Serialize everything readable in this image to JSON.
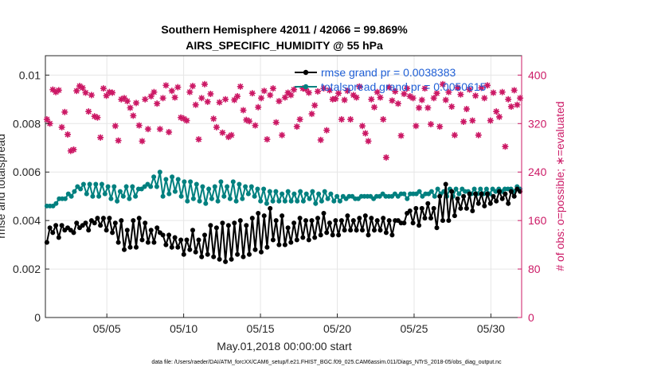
{
  "chart_data": {
    "type": "line",
    "title": [
      "Southern Hemisphere 42011 / 42066 = 99.869%",
      "AIRS_SPECIFIC_HUMIDITY @ 55 hPa"
    ],
    "xlabel": "May.01,2018 00:00:00 start",
    "ylabel_left": "rmse and totalspread",
    "ylabel_right": "# of obs: o=possible; ∗=evaluated",
    "x_ticks": [
      "05/05",
      "05/10",
      "05/15",
      "05/20",
      "05/25",
      "05/30"
    ],
    "x_tick_days": [
      5,
      10,
      15,
      20,
      25,
      30
    ],
    "xlim_days": [
      1,
      32
    ],
    "y_left_ticks": [
      "0",
      "0.002",
      "0.004",
      "0.006",
      "0.008",
      "0.01"
    ],
    "ylim_left": [
      0,
      0.0108
    ],
    "y_right_ticks": [
      "0",
      "80",
      "160",
      "240",
      "320",
      "400"
    ],
    "ylim_right": [
      0,
      432
    ],
    "grid": true,
    "legend_position": "top-right",
    "series": [
      {
        "name": "rmse grand pr = 0.0038383",
        "axis": "left",
        "color": "#000000",
        "marker": "circle",
        "values": [
          0.0031,
          0.0037,
          0.0035,
          0.0038,
          0.0033,
          0.0038,
          0.0036,
          0.0037,
          0.0036,
          0.0035,
          0.0039,
          0.0037,
          0.0038,
          0.0039,
          0.0036,
          0.004,
          0.0039,
          0.0041,
          0.0038,
          0.0041,
          0.0036,
          0.0041,
          0.0035,
          0.0039,
          0.0031,
          0.004,
          0.0028,
          0.0036,
          0.0029,
          0.004,
          0.0029,
          0.0041,
          0.0032,
          0.0039,
          0.0031,
          0.0036,
          0.0031,
          0.0037,
          0.0035,
          0.0034,
          0.003,
          0.0034,
          0.0029,
          0.0033,
          0.0029,
          0.0032,
          0.0026,
          0.0032,
          0.0028,
          0.0036,
          0.0027,
          0.0032,
          0.0025,
          0.0034,
          0.0026,
          0.0038,
          0.0025,
          0.0037,
          0.0024,
          0.0039,
          0.0023,
          0.0038,
          0.0024,
          0.0039,
          0.0026,
          0.004,
          0.0025,
          0.0038,
          0.0026,
          0.0041,
          0.0028,
          0.0043,
          0.0027,
          0.0042,
          0.0029,
          0.0045,
          0.0032,
          0.004,
          0.003,
          0.0042,
          0.003,
          0.0037,
          0.0031,
          0.0039,
          0.0032,
          0.0041,
          0.0033,
          0.004,
          0.0032,
          0.004,
          0.0033,
          0.0041,
          0.0034,
          0.0043,
          0.0035,
          0.0039,
          0.0034,
          0.004,
          0.0034,
          0.004,
          0.0036,
          0.0042,
          0.0036,
          0.004,
          0.0036,
          0.0041,
          0.0036,
          0.0042,
          0.0034,
          0.0041,
          0.0036,
          0.004,
          0.0036,
          0.0041,
          0.0035,
          0.004,
          0.0034,
          0.004,
          0.004,
          0.0039,
          0.0039,
          0.0043,
          0.0044,
          0.0039,
          0.0045,
          0.0038,
          0.0045,
          0.0041,
          0.0047,
          0.0041,
          0.0045,
          0.0037,
          0.005,
          0.004,
          0.0055,
          0.004,
          0.0052,
          0.0042,
          0.0049,
          0.0045,
          0.005,
          0.0045,
          0.0051,
          0.0044,
          0.0051,
          0.0047,
          0.0051,
          0.0046,
          0.0051,
          0.0047,
          0.005,
          0.0048,
          0.0052,
          0.0049,
          0.0051,
          0.0047,
          0.0052,
          0.005,
          0.0053,
          0.0052
        ]
      },
      {
        "name": "totalspread grand pr = 0.0050615",
        "axis": "left",
        "color": "#00807f",
        "marker": "circle",
        "values": [
          0.0046,
          0.0046,
          0.0046,
          0.0047,
          0.0049,
          0.0049,
          0.0049,
          0.0051,
          0.005,
          0.0052,
          0.0054,
          0.0053,
          0.0055,
          0.0051,
          0.0055,
          0.005,
          0.0055,
          0.005,
          0.0055,
          0.0051,
          0.0054,
          0.0049,
          0.0054,
          0.0048,
          0.0052,
          0.005,
          0.0054,
          0.0049,
          0.0054,
          0.005,
          0.0053,
          0.0053,
          0.0054,
          0.0055,
          0.0054,
          0.0058,
          0.0054,
          0.006,
          0.005,
          0.0057,
          0.0051,
          0.0058,
          0.0052,
          0.0057,
          0.005,
          0.0056,
          0.0048,
          0.0056,
          0.0049,
          0.0055,
          0.0048,
          0.0054,
          0.0047,
          0.0053,
          0.0049,
          0.0054,
          0.0048,
          0.0056,
          0.005,
          0.0054,
          0.0049,
          0.0056,
          0.0048,
          0.0055,
          0.0049,
          0.0054,
          0.0051,
          0.0054,
          0.005,
          0.0053,
          0.0048,
          0.0053,
          0.0047,
          0.0052,
          0.0048,
          0.0052,
          0.0048,
          0.0051,
          0.0048,
          0.0052,
          0.0048,
          0.0051,
          0.0048,
          0.0052,
          0.0048,
          0.0051,
          0.0049,
          0.0052,
          0.0047,
          0.0051,
          0.0048,
          0.0052,
          0.0049,
          0.0051,
          0.0048,
          0.005,
          0.0048,
          0.005,
          0.0049,
          0.005,
          0.005,
          0.0049,
          0.0049,
          0.005,
          0.005,
          0.005,
          0.005,
          0.0049,
          0.005,
          0.005,
          0.0051,
          0.005,
          0.005,
          0.005,
          0.0051,
          0.005,
          0.0051,
          0.0051,
          0.0049,
          0.0051,
          0.0051,
          0.0051,
          0.0052,
          0.005,
          0.0051,
          0.0051,
          0.0052,
          0.005,
          0.0053,
          0.0051,
          0.0052,
          0.005,
          0.0053,
          0.005,
          0.0053,
          0.0051,
          0.0053,
          0.0052,
          0.0052,
          0.0051,
          0.0053,
          0.0051,
          0.0053,
          0.0051,
          0.0053,
          0.0051,
          0.0053,
          0.0052,
          0.0053,
          0.0052,
          0.0053,
          0.0053,
          0.0053,
          0.0052,
          0.0054,
          0.0053
        ]
      },
      {
        "name": "# of obs evaluated",
        "axis": "right",
        "color": "#cc1a66",
        "marker": "star",
        "values": [
          327,
          320,
          376,
          372,
          375,
          314,
          339,
          302,
          275,
          277,
          374,
          382,
          379,
          371,
          340,
          367,
          332,
          330,
          297,
          378,
          366,
          372,
          371,
          316,
          292,
          360,
          362,
          357,
          346,
          333,
          354,
          317,
          291,
          360,
          311,
          365,
          372,
          353,
          311,
          362,
          383,
          306,
          374,
          363,
          380,
          330,
          328,
          325,
          372,
          382,
          351,
          294,
          362,
          385,
          356,
          369,
          328,
          314,
          355,
          305,
          360,
          298,
          301,
          359,
          365,
          381,
          342,
          326,
          324,
          370,
          317,
          347,
          362,
          374,
          294,
          367,
          378,
          322,
          357,
          301,
          363,
          371,
          367,
          376,
          315,
          327,
          378,
          377,
          371,
          336,
          350,
          373,
          293,
          378,
          309,
          375,
          360,
          361,
          370,
          327,
          359,
          374,
          327,
          367,
          363,
          381,
          316,
          304,
          291,
          360,
          347,
          372,
          363,
          327,
          264,
          380,
          358,
          373,
          353,
          300,
          369,
          378,
          365,
          362,
          316,
          346,
          359,
          378,
          346,
          319,
          362,
          370,
          315,
          385,
          359,
          372,
          348,
          301,
          379,
          368,
          323,
          344,
          376,
          325,
          366,
          301,
          379,
          362,
          383,
          325,
          371,
          340,
          331,
          372,
          282,
          360,
          348,
          375,
          351,
          362
        ]
      }
    ],
    "footer": "data file: /Users/raeder/DAI/ATM_forcXX/CAM6_setup/f.e21.FHIST_BGC.f09_025.CAM6assim.011/Diags_NTrS_2018-05/obs_diag_output.nc"
  }
}
